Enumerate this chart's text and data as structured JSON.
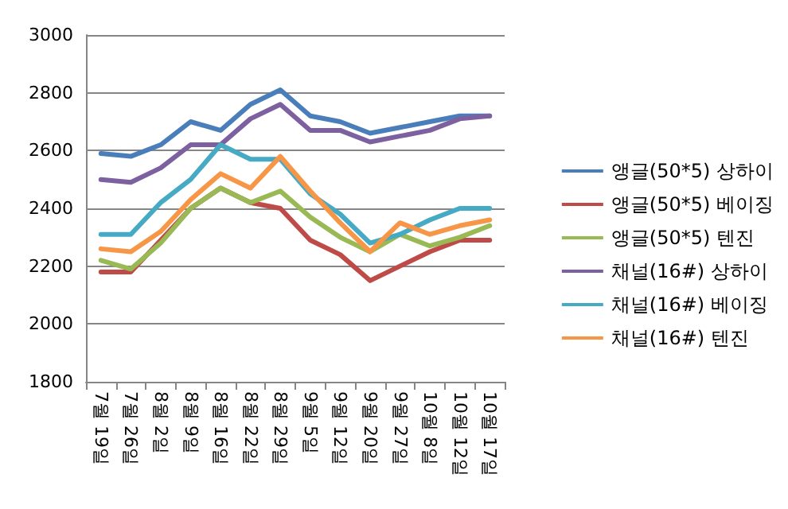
{
  "chart_data": {
    "type": "line",
    "categories": [
      "7월 19일",
      "7월 26일",
      "8월 2일",
      "8월 9일",
      "8월 16일",
      "8월 22일",
      "8월 29일",
      "9월 5일",
      "9월 12일",
      "9월 20일",
      "9월 27일",
      "10월 8일",
      "10월 12일",
      "10월 17일"
    ],
    "series": [
      {
        "name": "앵글(50*5) 상하이",
        "color": "#4a7ebb",
        "values": [
          2590,
          2580,
          2620,
          2700,
          2670,
          2760,
          2810,
          2720,
          2700,
          2660,
          2680,
          2700,
          2720,
          2720
        ]
      },
      {
        "name": "앵글(50*5) 베이징",
        "color": "#be4b48",
        "values": [
          2180,
          2180,
          2290,
          2400,
          2470,
          2420,
          2400,
          2290,
          2240,
          2150,
          2200,
          2250,
          2290,
          2290
        ]
      },
      {
        "name": "앵글(50*5) 텐진",
        "color": "#98b954",
        "values": [
          2220,
          2190,
          2280,
          2400,
          2470,
          2420,
          2460,
          2370,
          2300,
          2250,
          2310,
          2270,
          2300,
          2340
        ]
      },
      {
        "name": "채널(16#) 상하이",
        "color": "#7d60a0",
        "values": [
          2500,
          2490,
          2540,
          2620,
          2620,
          2710,
          2760,
          2670,
          2670,
          2630,
          2650,
          2670,
          2710,
          2720
        ]
      },
      {
        "name": "채널(16#) 베이징",
        "color": "#46aac5",
        "values": [
          2310,
          2310,
          2420,
          2500,
          2620,
          2570,
          2570,
          2450,
          2380,
          2280,
          2310,
          2360,
          2400,
          2400
        ]
      },
      {
        "name": "채널(16#) 텐진",
        "color": "#f79646",
        "values": [
          2260,
          2250,
          2320,
          2430,
          2520,
          2470,
          2580,
          2460,
          2350,
          2250,
          2350,
          2310,
          2340,
          2360
        ]
      }
    ],
    "ylim": [
      1800,
      3000
    ],
    "yticks": [
      1800,
      2000,
      2200,
      2400,
      2600,
      2800,
      3000
    ],
    "grid": "y",
    "legend": "right",
    "marker": "none",
    "line_style": "solid"
  }
}
